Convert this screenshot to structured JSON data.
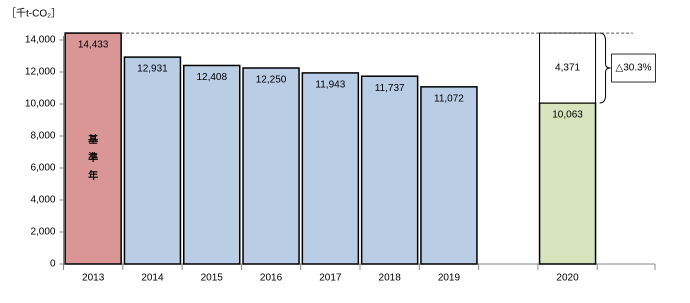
{
  "chart_data": {
    "type": "stacked_bar",
    "unit_label": "［千t-CO₂］",
    "categories": [
      "2013",
      "2014",
      "2015",
      "2016",
      "2017",
      "2018",
      "2019",
      null,
      "2020"
    ],
    "series": [
      {
        "colors": [
          "#d99694",
          "#b9cde5",
          "#b9cde5",
          "#b9cde5",
          "#b9cde5",
          "#b9cde5",
          "#b9cde5",
          null,
          "#d7e4bd"
        ],
        "values": [
          14433,
          12931,
          12408,
          12250,
          11943,
          11737,
          11072,
          null,
          10063
        ],
        "value_labels": [
          "14,433",
          "12,931",
          "12,408",
          "12,250",
          "11,943",
          "11,737",
          "11,072",
          null,
          "10,063"
        ]
      },
      {
        "color": "#ffffff",
        "values": [
          null,
          null,
          null,
          null,
          null,
          null,
          null,
          null,
          4371
        ],
        "value_labels": [
          null,
          null,
          null,
          null,
          null,
          null,
          null,
          null,
          "4,371"
        ]
      }
    ],
    "base_year_label": "基準年",
    "annotation": "△30.3%",
    "ylim": [
      0,
      14000
    ],
    "yticks": [
      0,
      {
        "value": 2000,
        "label": "2,000"
      },
      {
        "value": 4000,
        "label": "4,000"
      },
      {
        "value": 6000,
        "label": "6,000"
      },
      {
        "value": 8000,
        "label": "8,000"
      },
      {
        "value": 10000,
        "label": "10,000"
      },
      {
        "value": 12000,
        "label": "12,000"
      },
      {
        "value": 14000,
        "label": "14,000"
      }
    ]
  }
}
